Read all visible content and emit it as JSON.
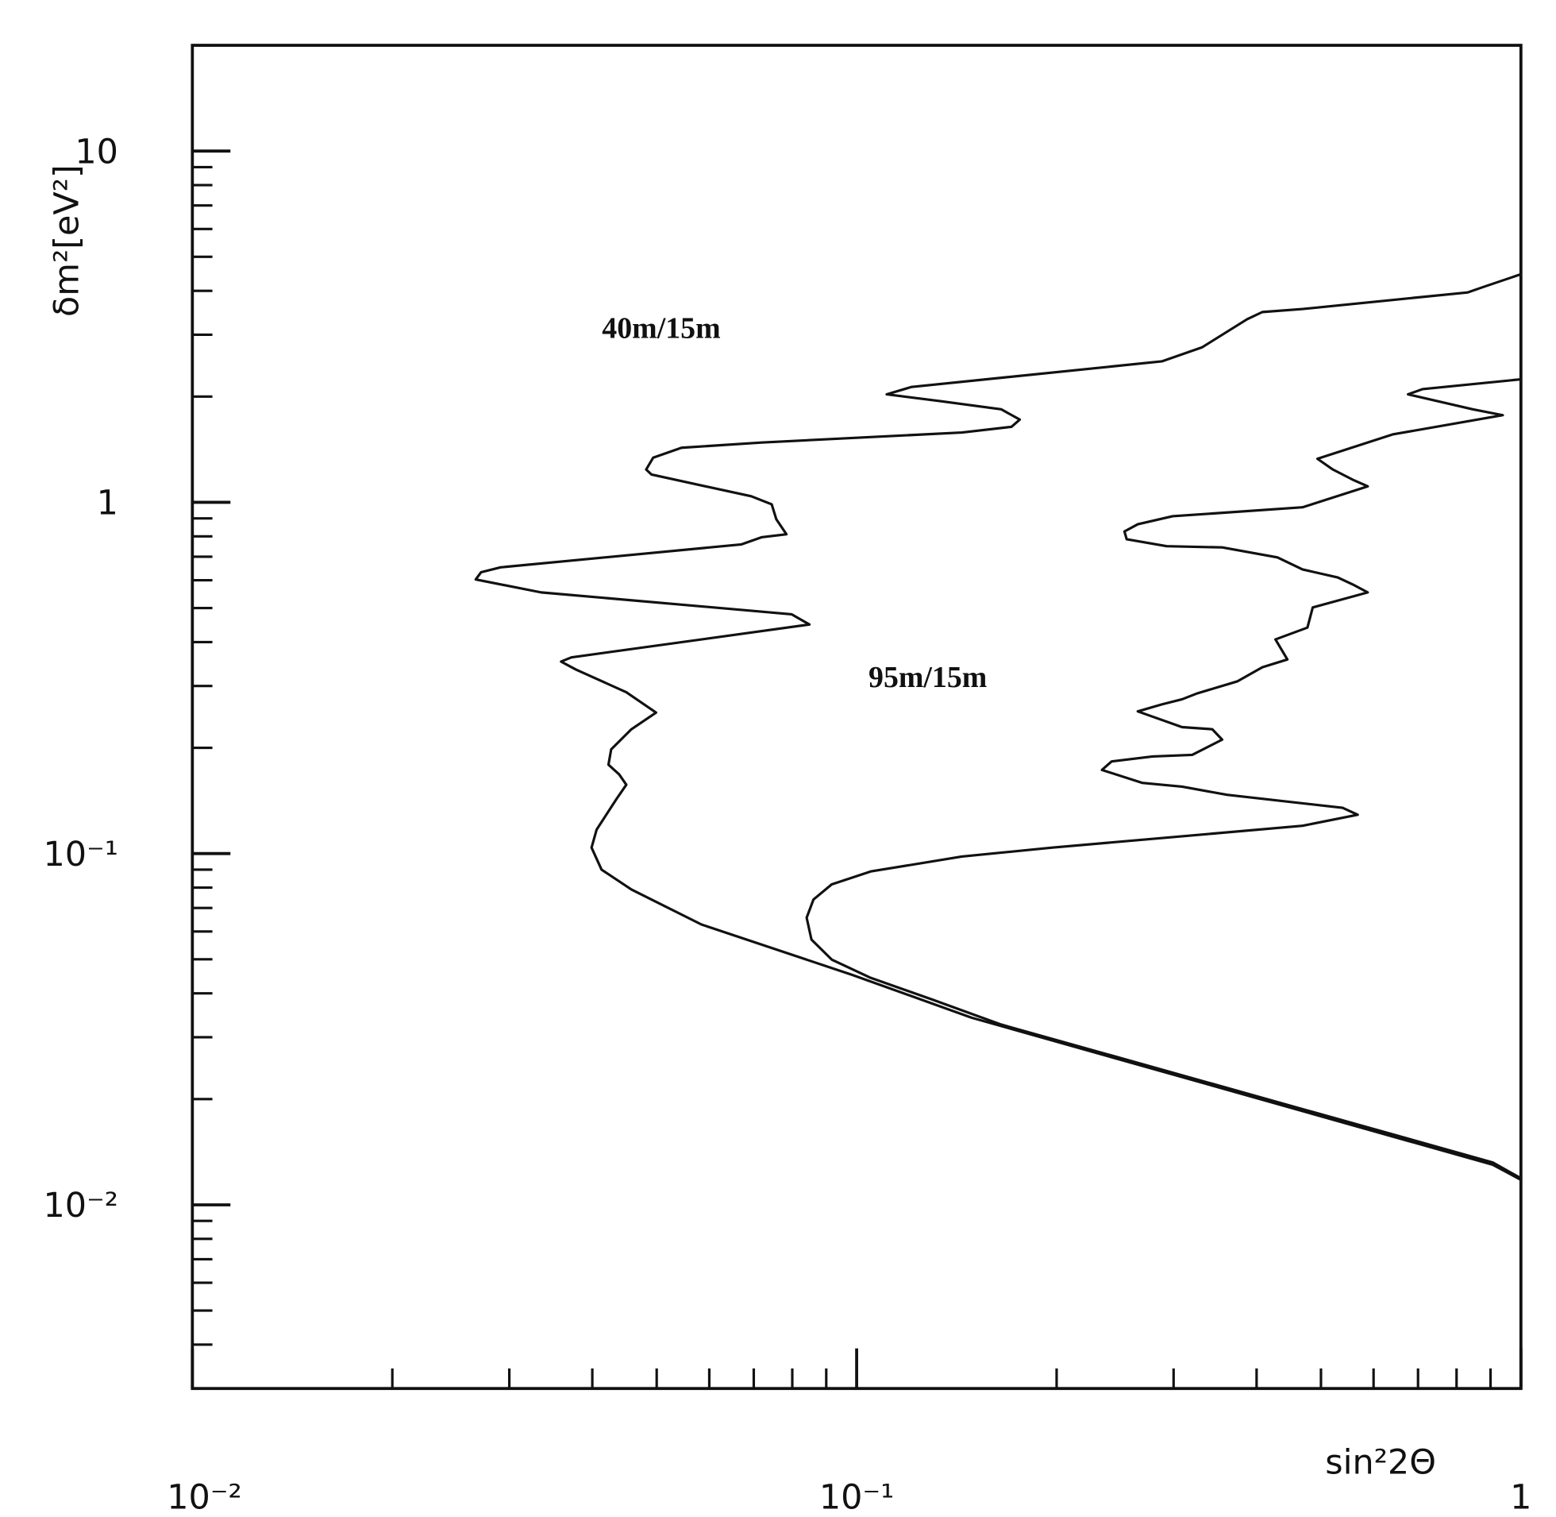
{
  "chart_data": {
    "type": "line",
    "x_label": "sin²2Θ",
    "y_label": "δm²[eV²]",
    "xscale": "log",
    "yscale": "log",
    "xlim": [
      0.01,
      1
    ],
    "ylim": [
      0.003,
      20
    ],
    "xticks": [
      {
        "value": 0.01,
        "label": "10⁻²"
      },
      {
        "value": 0.1,
        "label": "10⁻¹"
      },
      1
    ],
    "yticks": [
      {
        "value": 0.01,
        "label": "10⁻²"
      },
      {
        "value": 0.1,
        "label": "10⁻¹"
      },
      1,
      10
    ],
    "minor_ticks": true,
    "series": [
      {
        "name": "40m/15m",
        "color": "#111111",
        "x": [
          1.0,
          0.907,
          0.149,
          0.0983,
          0.0584,
          0.0458,
          0.0413,
          0.0399,
          0.0406,
          0.0435,
          0.045,
          0.0439,
          0.0423,
          0.0427,
          0.0458,
          0.0499,
          0.045,
          0.0378,
          0.0359,
          0.0372,
          0.0849,
          0.0798,
          0.0335,
          0.0267,
          0.0272,
          0.0291,
          0.0671,
          0.0719,
          0.0784,
          0.0757,
          0.0745,
          0.0694,
          0.0491,
          0.0482,
          0.0494,
          0.0545,
          0.0719,
          0.144,
          0.171,
          0.176,
          0.165,
          0.134,
          0.111,
          0.121,
          0.288,
          0.331,
          0.387,
          0.408,
          0.469,
          0.832,
          0.877,
          1.0
        ],
        "values": [
          0.01178,
          0.013,
          0.0341,
          0.0452,
          0.0628,
          0.079,
          0.09,
          0.104,
          0.117,
          0.143,
          0.157,
          0.168,
          0.179,
          0.198,
          0.226,
          0.252,
          0.288,
          0.334,
          0.352,
          0.362,
          0.449,
          0.48,
          0.554,
          0.603,
          0.632,
          0.653,
          0.759,
          0.795,
          0.811,
          0.895,
          0.987,
          1.04,
          1.2,
          1.24,
          1.34,
          1.43,
          1.48,
          1.58,
          1.64,
          1.72,
          1.84,
          1.94,
          2.03,
          2.13,
          2.52,
          2.76,
          3.32,
          3.48,
          3.55,
          3.96,
          4.1,
          4.46
        ]
      },
      {
        "name": "95m/15m",
        "color": "#111111",
        "x": [
          1.0,
          0.907,
          0.165,
          0.13,
          0.105,
          0.0917,
          0.0855,
          0.0841,
          0.0861,
          0.0917,
          0.105,
          0.144,
          0.197,
          0.469,
          0.568,
          0.539,
          0.361,
          0.309,
          0.269,
          0.234,
          0.242,
          0.279,
          0.32,
          0.355,
          0.343,
          0.309,
          0.265,
          0.288,
          0.309,
          0.326,
          0.374,
          0.408,
          0.445,
          0.427,
          0.477,
          0.486,
          0.588,
          0.558,
          0.53,
          0.469,
          0.43,
          0.355,
          0.293,
          0.255,
          0.253,
          0.265,
          0.299,
          0.469,
          0.588,
          0.558,
          0.521,
          0.494,
          0.641,
          0.939,
          0.846,
          0.676,
          0.711,
          1.0
        ],
        "values": [
          0.0119,
          0.0132,
          0.0326,
          0.0384,
          0.0443,
          0.0499,
          0.0569,
          0.0657,
          0.074,
          0.0817,
          0.0889,
          0.0981,
          0.104,
          0.12,
          0.129,
          0.135,
          0.147,
          0.155,
          0.159,
          0.173,
          0.183,
          0.189,
          0.191,
          0.211,
          0.226,
          0.229,
          0.254,
          0.266,
          0.275,
          0.286,
          0.309,
          0.339,
          0.357,
          0.407,
          0.44,
          0.502,
          0.554,
          0.584,
          0.611,
          0.644,
          0.697,
          0.744,
          0.75,
          0.785,
          0.826,
          0.866,
          0.913,
          0.968,
          1.11,
          1.16,
          1.24,
          1.33,
          1.56,
          1.77,
          1.84,
          2.03,
          2.1,
          2.24
        ]
      }
    ]
  }
}
